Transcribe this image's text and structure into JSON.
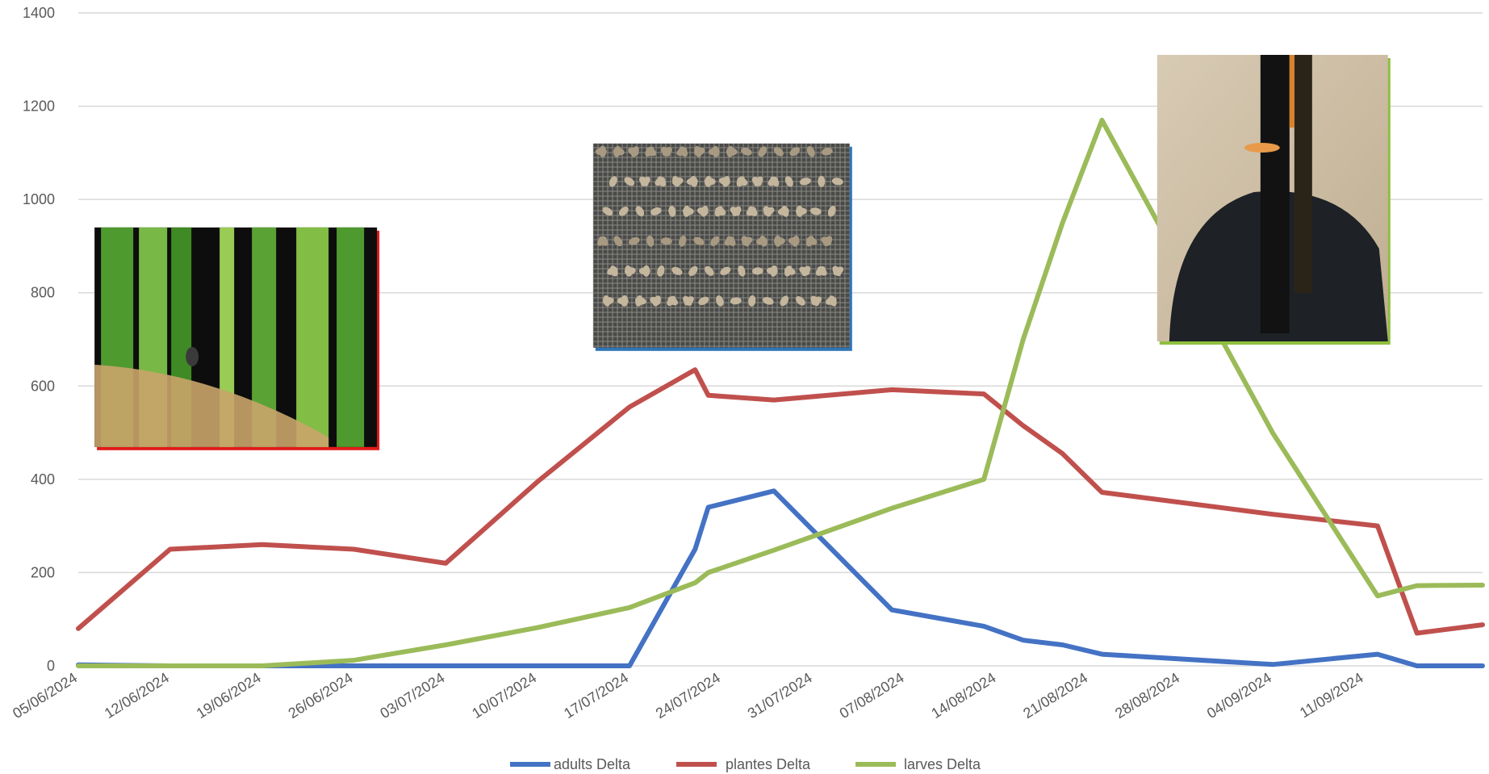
{
  "chart_data": {
    "type": "line",
    "ylim": [
      0,
      1400
    ],
    "y_ticks": [
      "0",
      "200",
      "400",
      "600",
      "800",
      "1000",
      "1200",
      "1400"
    ],
    "x_start": "2024-06-05",
    "x_end": "2024-09-20",
    "x_tick_labels": [
      "05/06/2024",
      "12/06/2024",
      "19/06/2024",
      "26/06/2024",
      "03/07/2024",
      "10/07/2024",
      "17/07/2024",
      "24/07/2024",
      "31/07/2024",
      "07/08/2024",
      "14/08/2024",
      "21/08/2024",
      "28/08/2024",
      "04/09/2024",
      "11/09/2024"
    ],
    "x_tick_dates": [
      "2024-06-05",
      "2024-06-12",
      "2024-06-19",
      "2024-06-26",
      "2024-07-03",
      "2024-07-10",
      "2024-07-17",
      "2024-07-24",
      "2024-07-31",
      "2024-08-07",
      "2024-08-14",
      "2024-08-21",
      "2024-08-28",
      "2024-09-04",
      "2024-09-11"
    ],
    "grid": true,
    "legend_position": "bottom",
    "series": [
      {
        "name": "adults Delta",
        "color": "#4472c4",
        "points": [
          [
            "2024-06-05",
            2
          ],
          [
            "2024-06-12",
            0
          ],
          [
            "2024-06-19",
            0
          ],
          [
            "2024-06-26",
            0
          ],
          [
            "2024-07-03",
            0
          ],
          [
            "2024-07-10",
            0
          ],
          [
            "2024-07-17",
            0
          ],
          [
            "2024-07-22",
            250
          ],
          [
            "2024-07-23",
            340
          ],
          [
            "2024-07-28",
            375
          ],
          [
            "2024-08-06",
            120
          ],
          [
            "2024-08-13",
            85
          ],
          [
            "2024-08-16",
            55
          ],
          [
            "2024-08-19",
            45
          ],
          [
            "2024-08-22",
            25
          ],
          [
            "2024-09-04",
            3
          ],
          [
            "2024-09-12",
            25
          ],
          [
            "2024-09-15",
            0
          ],
          [
            "2024-09-20",
            0
          ]
        ]
      },
      {
        "name": "plantes Delta",
        "color": "#c0504d",
        "points": [
          [
            "2024-06-05",
            80
          ],
          [
            "2024-06-12",
            250
          ],
          [
            "2024-06-19",
            260
          ],
          [
            "2024-06-26",
            250
          ],
          [
            "2024-07-03",
            220
          ],
          [
            "2024-07-10",
            395
          ],
          [
            "2024-07-17",
            555
          ],
          [
            "2024-07-22",
            635
          ],
          [
            "2024-07-23",
            580
          ],
          [
            "2024-07-28",
            570
          ],
          [
            "2024-08-06",
            592
          ],
          [
            "2024-08-13",
            583
          ],
          [
            "2024-08-16",
            515
          ],
          [
            "2024-08-19",
            455
          ],
          [
            "2024-08-22",
            372
          ],
          [
            "2024-09-04",
            325
          ],
          [
            "2024-09-12",
            300
          ],
          [
            "2024-09-15",
            70
          ],
          [
            "2024-09-20",
            88
          ]
        ]
      },
      {
        "name": "larves Delta",
        "color": "#9bbb59",
        "points": [
          [
            "2024-06-05",
            0
          ],
          [
            "2024-06-12",
            0
          ],
          [
            "2024-06-19",
            0
          ],
          [
            "2024-06-26",
            12
          ],
          [
            "2024-07-03",
            45
          ],
          [
            "2024-07-10",
            82
          ],
          [
            "2024-07-17",
            125
          ],
          [
            "2024-07-22",
            178
          ],
          [
            "2024-07-23",
            200
          ],
          [
            "2024-07-28",
            248
          ],
          [
            "2024-08-06",
            338
          ],
          [
            "2024-08-13",
            400
          ],
          [
            "2024-08-16",
            700
          ],
          [
            "2024-08-19",
            950
          ],
          [
            "2024-08-22",
            1170
          ],
          [
            "2024-09-04",
            500
          ],
          [
            "2024-09-12",
            150
          ],
          [
            "2024-09-15",
            172
          ],
          [
            "2024-09-20",
            173
          ]
        ]
      }
    ]
  },
  "photos": [
    {
      "name": "photo-rice-leaves",
      "border_color": "#e31b1b",
      "date": "2024-06-17",
      "value": 940
    },
    {
      "name": "photo-insects-on-mesh",
      "border_color": "#2e75b6",
      "date": "2024-07-24",
      "value": 1120
    },
    {
      "name": "photo-rice-roots",
      "border_color": "#8fbf3f",
      "date": "2024-09-04",
      "value": 1310
    }
  ]
}
